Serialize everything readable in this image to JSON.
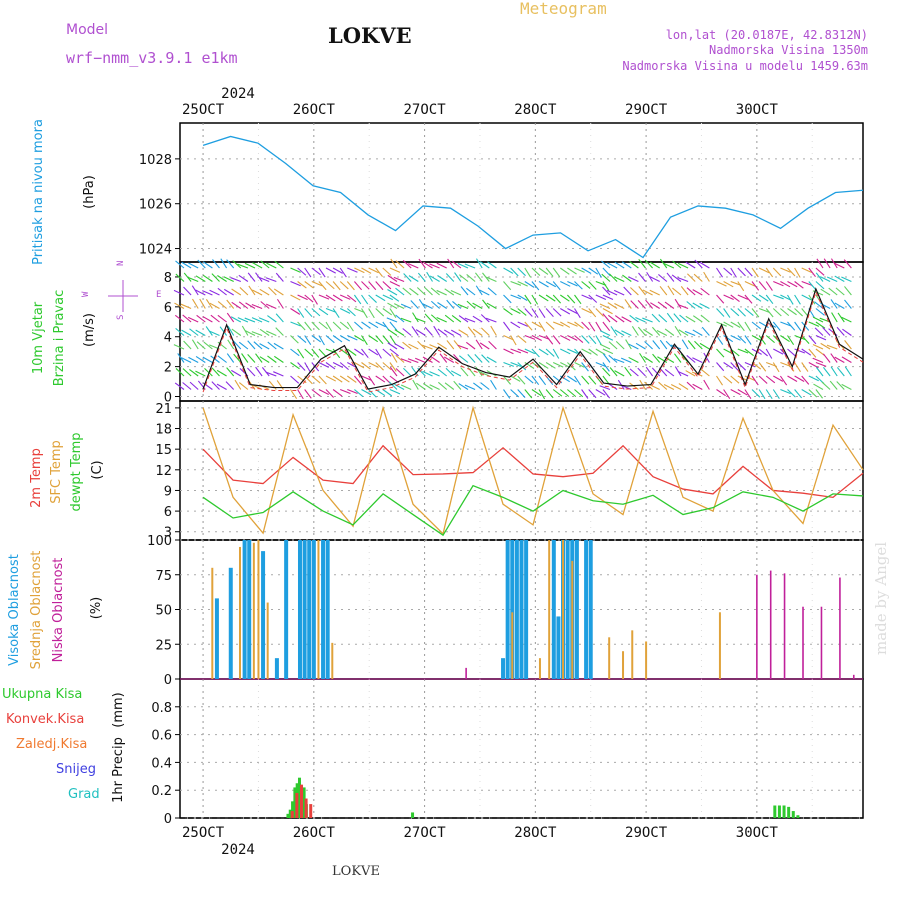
{
  "header": {
    "model_label": "Model",
    "model_name": "wrf−nmm_v3.9.1  e1km",
    "station": "LOKVE",
    "meteogram": "Meteogram",
    "lonlat": "lon,lat (20.0187E, 42.8312N)",
    "elevation": "Nadmorska Visina 1350m",
    "model_elevation": "Nadmorska Visina u modelu 1459.63m",
    "year": "2024",
    "credit": "made by Angel",
    "bottom_station": "LOKVE"
  },
  "colors": {
    "pressure": "#1e9ee0",
    "temp2m": "#e8403c",
    "sfc": "#e0a23a",
    "dewpt": "#2ec92e",
    "high_cloud": "#1e9ee0",
    "mid_cloud": "#e0a23a",
    "low_cloud": "#c0209a",
    "precip_total": "#2ec92e",
    "precip_conv": "#e8403c",
    "wind_purple": "#8a2be2"
  },
  "chart_data": [
    {
      "type": "line",
      "panel": "pressure",
      "ylabel_1": "Pritisak na nivou mora",
      "ylabel_2": "(hPa)",
      "x_ticks": [
        "25OCT",
        "26OCT",
        "27OCT",
        "28OCT",
        "29OCT",
        "30OCT"
      ],
      "x_hours": [
        0,
        6,
        12,
        18,
        24,
        30,
        36,
        42,
        48,
        54,
        60,
        66,
        72,
        78,
        84,
        90,
        96,
        102,
        108,
        114,
        120,
        126,
        132,
        138,
        144
      ],
      "y_ticks": [
        1024,
        1026,
        1028
      ],
      "ylim": [
        1023.4,
        1029.6
      ],
      "series": [
        {
          "values": [
            1028.6,
            1029.0,
            1028.7,
            1027.8,
            1026.8,
            1026.5,
            1025.5,
            1024.8,
            1025.9,
            1025.8,
            1025.0,
            1024.0,
            1024.6,
            1024.7,
            1023.9,
            1024.4,
            1023.6,
            1025.4,
            1025.9,
            1025.8,
            1025.5,
            1024.9,
            1025.8,
            1026.5,
            1026.6
          ]
        }
      ]
    },
    {
      "type": "line",
      "panel": "wind",
      "ylabel_1": "10m Vjetar",
      "ylabel_2": "Brzina i Pravac",
      "ylabel_3": "(m/s)",
      "compass_n": "N",
      "compass_w": "W",
      "compass_e": "E",
      "compass_s": "S",
      "y_ticks": [
        0,
        2,
        4,
        6,
        8
      ],
      "ylim": [
        -0.3,
        9
      ],
      "series": [
        {
          "values": [
            0.5,
            4.8,
            0.8,
            0.6,
            0.6,
            2.5,
            3.4,
            0.5,
            0.8,
            1.5,
            3.3,
            2.2,
            1.6,
            1.3,
            2.5,
            0.8,
            3.0,
            0.9,
            0.7,
            0.8,
            3.5,
            1.5,
            4.8,
            0.8,
            5.2,
            2.0,
            7.2,
            3.5,
            2.5
          ]
        }
      ]
    },
    {
      "type": "line",
      "panel": "temperature",
      "ylabel_1": "2m Temp",
      "ylabel_2": "SFC Temp",
      "ylabel_3": "dewpt Temp",
      "ylabel_4": "(C)",
      "y_ticks": [
        3,
        6,
        9,
        12,
        15,
        18,
        21
      ],
      "ylim": [
        1.8,
        22
      ],
      "series": [
        {
          "name": "2m Temp",
          "values": [
            15.0,
            10.5,
            10.0,
            13.8,
            10.5,
            10.0,
            15.5,
            11.3,
            11.4,
            11.6,
            15.2,
            11.4,
            11.0,
            11.5,
            15.5,
            11.0,
            9.2,
            8.5,
            12.5,
            9.0,
            8.6,
            8.0,
            11.5
          ]
        },
        {
          "name": "SFC Temp",
          "values": [
            21.0,
            8.0,
            2.8,
            20.0,
            9.0,
            3.8,
            21.0,
            7.0,
            2.7,
            21.0,
            7.0,
            4.0,
            21.0,
            8.5,
            5.5,
            20.5,
            8.0,
            6.0,
            19.5,
            9.0,
            4.2,
            18.5,
            12.0
          ]
        },
        {
          "name": "dewpt Temp",
          "values": [
            8.0,
            5.0,
            5.8,
            8.8,
            6.0,
            4.0,
            8.5,
            5.5,
            2.5,
            9.7,
            8.0,
            6.0,
            9.0,
            7.5,
            7.0,
            8.3,
            5.5,
            6.5,
            8.8,
            8.0,
            6.0,
            8.5,
            8.2
          ]
        }
      ]
    },
    {
      "type": "bar",
      "panel": "clouds",
      "ylabel_1": "Visoka Oblacnost",
      "ylabel_2": "Srednja Oblacnost",
      "ylabel_3": "Niska Oblacnost",
      "ylabel_4": "(%)",
      "y_ticks": [
        0,
        25,
        50,
        75,
        100
      ],
      "ylim": [
        0,
        100
      ],
      "series": [
        {
          "name": "Visoka Oblacnost",
          "hours": [
            3,
            6,
            9,
            10,
            13,
            16,
            18,
            21,
            22,
            23,
            24,
            26,
            27,
            65,
            66,
            67,
            68,
            69,
            70,
            76,
            77,
            78,
            79,
            80,
            81,
            83,
            84
          ],
          "values": [
            58,
            80,
            100,
            100,
            92,
            15,
            100,
            100,
            100,
            100,
            100,
            100,
            100,
            15,
            100,
            100,
            100,
            100,
            100,
            100,
            45,
            100,
            100,
            100,
            100,
            100,
            100
          ]
        },
        {
          "name": "Srednja Oblacnost",
          "hours": [
            2,
            8,
            11,
            12,
            14,
            25,
            28,
            67,
            73,
            75,
            78,
            80,
            88,
            91,
            93,
            96,
            112
          ],
          "values": [
            80,
            95,
            98,
            100,
            55,
            100,
            26,
            48,
            15,
            100,
            100,
            85,
            30,
            20,
            35,
            27,
            48
          ]
        },
        {
          "name": "Niska Oblacnost",
          "hours": [
            57,
            120,
            123,
            126,
            130,
            134,
            138,
            141
          ],
          "values": [
            8,
            75,
            78,
            76,
            52,
            52,
            73,
            3
          ]
        }
      ]
    },
    {
      "type": "bar",
      "panel": "precipitation",
      "ylabel_1": "1hr Precip",
      "ylabel_2": "(mm)",
      "legend": [
        "Ukupna Kisa",
        "Konvek.Kisa",
        "Zaledj.Kisa",
        "Snijeg",
        "Grad"
      ],
      "y_ticks": [
        0,
        0.2,
        0.4,
        0.6,
        0.8
      ],
      "ylim": [
        0,
        1.0
      ],
      "series": [
        {
          "name": "Ukupna Kisa",
          "hours": [
            18.5,
            19,
            19.5,
            20,
            20.5,
            21,
            21.5,
            22,
            22.5,
            45.5,
            124,
            125,
            126,
            127,
            128,
            129
          ],
          "values": [
            0.03,
            0.06,
            0.12,
            0.22,
            0.25,
            0.29,
            0.2,
            0.22,
            0.1,
            0.04,
            0.09,
            0.09,
            0.09,
            0.08,
            0.05,
            0.02
          ]
        },
        {
          "name": "Konvek.Kisa",
          "hours": [
            19,
            20,
            21,
            22,
            23
          ],
          "values": [
            0.05,
            0.18,
            0.24,
            0.14,
            0.1
          ]
        }
      ]
    }
  ]
}
